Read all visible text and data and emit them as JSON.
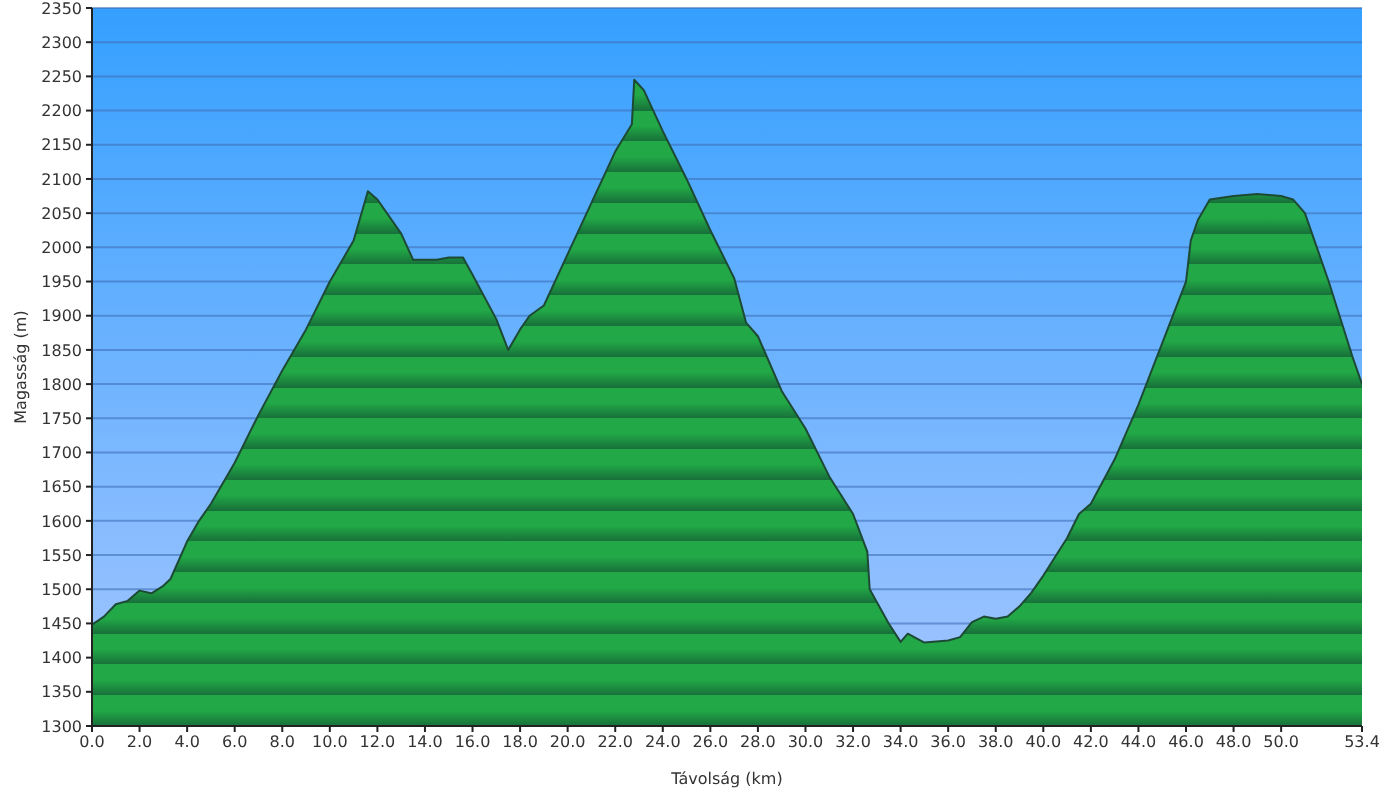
{
  "chart_data": {
    "type": "area",
    "xlabel": "Távolság  (km)",
    "ylabel": "Magasság (m)",
    "color": "#22a846",
    "grid": "y",
    "xlim": [
      0,
      53.4
    ],
    "ylim": [
      1300,
      2350
    ],
    "xticks": [
      {
        "value": 0,
        "label": "0.0"
      },
      {
        "value": 2,
        "label": "2.0"
      },
      {
        "value": 4,
        "label": "4.0"
      },
      {
        "value": 6,
        "label": "6.0"
      },
      {
        "value": 8,
        "label": "8.0"
      },
      {
        "value": 10,
        "label": "10.0"
      },
      {
        "value": 12,
        "label": "12.0"
      },
      {
        "value": 14,
        "label": "14.0"
      },
      {
        "value": 16,
        "label": "16.0"
      },
      {
        "value": 18,
        "label": "18.0"
      },
      {
        "value": 20,
        "label": "20.0"
      },
      {
        "value": 22,
        "label": "22.0"
      },
      {
        "value": 24,
        "label": "24.0"
      },
      {
        "value": 26,
        "label": "26.0"
      },
      {
        "value": 28,
        "label": "28.0"
      },
      {
        "value": 30,
        "label": "30.0"
      },
      {
        "value": 32,
        "label": "32.0"
      },
      {
        "value": 34,
        "label": "34.0"
      },
      {
        "value": 36,
        "label": "36.0"
      },
      {
        "value": 38,
        "label": "38.0"
      },
      {
        "value": 40,
        "label": "40.0"
      },
      {
        "value": 42,
        "label": "42.0"
      },
      {
        "value": 44,
        "label": "44.0"
      },
      {
        "value": 46,
        "label": "46.0"
      },
      {
        "value": 48,
        "label": "48.0"
      },
      {
        "value": 50,
        "label": "50.0"
      },
      {
        "value": 53.4,
        "label": "53.4"
      }
    ],
    "yticks": [
      1300,
      1350,
      1400,
      1450,
      1500,
      1550,
      1600,
      1650,
      1700,
      1750,
      1800,
      1850,
      1900,
      1950,
      2000,
      2050,
      2100,
      2150,
      2200,
      2250,
      2300,
      2350
    ],
    "x": [
      0,
      0.5,
      1,
      1.5,
      2,
      2.5,
      3,
      3.3,
      4,
      4.5,
      5,
      6,
      7,
      8,
      9,
      10,
      11,
      11.6,
      12,
      13,
      13.5,
      14.5,
      15,
      15.6,
      16,
      17,
      17.5,
      18,
      18.4,
      19,
      20,
      21,
      22,
      22.7,
      22.8,
      23.2,
      24,
      25,
      26,
      27,
      27.5,
      28,
      29,
      30,
      31,
      32,
      32.6,
      32.7,
      33.5,
      34,
      34.3,
      35,
      36,
      36.5,
      37,
      37.5,
      38,
      38.5,
      39,
      39.5,
      40,
      41,
      41.5,
      42,
      43,
      44,
      45,
      46,
      46.2,
      46.5,
      47,
      48,
      49,
      50,
      50.5,
      51,
      52,
      53,
      53.4
    ],
    "values": [
      1448,
      1460,
      1478,
      1483,
      1498,
      1494,
      1505,
      1515,
      1570,
      1600,
      1625,
      1685,
      1755,
      1820,
      1880,
      1950,
      2010,
      2082,
      2070,
      2020,
      1982,
      1982,
      1985,
      1985,
      1960,
      1895,
      1850,
      1880,
      1900,
      1915,
      1990,
      2065,
      2140,
      2180,
      2245,
      2230,
      2170,
      2100,
      2025,
      1955,
      1890,
      1870,
      1790,
      1735,
      1665,
      1610,
      1555,
      1500,
      1450,
      1423,
      1435,
      1422,
      1425,
      1430,
      1452,
      1460,
      1457,
      1460,
      1475,
      1495,
      1520,
      1575,
      1610,
      1625,
      1690,
      1770,
      1860,
      1950,
      2010,
      2040,
      2070,
      2075,
      2078,
      2075,
      2070,
      2050,
      1950,
      1840,
      1800
    ]
  }
}
